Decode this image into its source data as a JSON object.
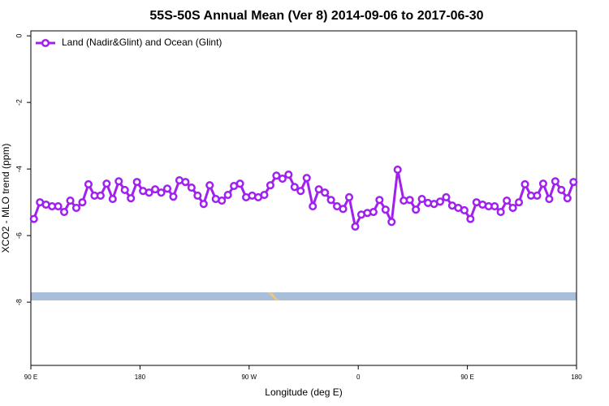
{
  "chart_data": {
    "type": "line",
    "title": "55S-50S Annual Mean (Ver 8)   2014-09-06 to 2017-06-30",
    "x_label": "Longitude (deg E)",
    "y_label": "XCO2 - MLO trend (ppm)",
    "x": [
      92.5,
      97.5,
      102.5,
      107.5,
      112.5,
      117.5,
      122.5,
      127.5,
      132.5,
      137.5,
      142.5,
      147.5,
      152.5,
      157.5,
      162.5,
      167.5,
      172.5,
      177.5,
      182.5,
      187.5,
      192.5,
      197.5,
      202.5,
      207.5,
      212.5,
      217.5,
      222.5,
      227.5,
      232.5,
      237.5,
      242.5,
      247.5,
      252.5,
      257.5,
      262.5,
      267.5,
      272.5,
      277.5,
      282.5,
      287.5,
      292.5,
      297.5,
      302.5,
      307.5,
      312.5,
      317.5,
      322.5,
      327.5,
      332.5,
      337.5,
      342.5,
      347.5,
      352.5,
      357.5,
      362.5,
      367.5,
      372.5,
      377.5,
      382.5,
      387.5,
      392.5,
      397.5,
      402.5,
      407.5,
      412.5,
      417.5,
      422.5,
      427.5,
      432.5,
      437.5,
      442.5,
      447.5,
      452.5,
      457.5,
      462.5,
      467.5,
      472.5,
      477.5,
      482.5,
      487.5,
      492.5,
      497.5,
      502.5,
      507.5,
      512.5,
      517.5,
      522.5,
      527.5,
      532.5,
      537.5
    ],
    "series": [
      {
        "name": "Land (Nadir&Glint) and Ocean (Glint)",
        "color": "#a020f0",
        "values": [
          -5.5,
          -5.0,
          -5.07,
          -5.12,
          -5.12,
          -5.29,
          -4.95,
          -5.17,
          -5.0,
          -4.46,
          -4.8,
          -4.8,
          -4.44,
          -4.9,
          -4.37,
          -4.63,
          -4.88,
          -4.39,
          -4.66,
          -4.71,
          -4.61,
          -4.71,
          -4.59,
          -4.83,
          -4.34,
          -4.39,
          -4.56,
          -4.8,
          -5.05,
          -4.49,
          -4.9,
          -4.95,
          -4.78,
          -4.51,
          -4.44,
          -4.85,
          -4.8,
          -4.85,
          -4.78,
          -4.49,
          -4.2,
          -4.29,
          -4.17,
          -4.54,
          -4.66,
          -4.27,
          -5.12,
          -4.61,
          -4.71,
          -4.93,
          -5.12,
          -5.2,
          -4.85,
          -5.73,
          -5.37,
          -5.32,
          -5.29,
          -4.93,
          -5.22,
          -5.59,
          -4.02,
          -4.95,
          -4.93,
          -5.22,
          -4.9,
          -5.02,
          -5.05,
          -4.98,
          -4.85,
          -5.1,
          -5.17,
          -5.24,
          -5.5,
          -5.0,
          -5.07,
          -5.12,
          -5.12,
          -5.29,
          -4.95,
          -5.17,
          -5.0,
          -4.46,
          -4.8,
          -4.8,
          -4.44,
          -4.9,
          -4.37,
          -4.63,
          -4.88,
          -4.39
        ]
      }
    ],
    "xlim": [
      90,
      540
    ],
    "xticks": [
      {
        "value": 90,
        "label": "90 E"
      },
      180,
      {
        "value": 270,
        "label": "90 W"
      },
      {
        "value": 360,
        "label": "0"
      },
      {
        "value": 450,
        "label": "90 E"
      },
      {
        "value": 540,
        "label": "180"
      }
    ],
    "ylim": [
      -9.9,
      0.15
    ],
    "yticks": [
      0,
      -2,
      -4,
      -6,
      -8
    ],
    "legend": "top-left"
  }
}
